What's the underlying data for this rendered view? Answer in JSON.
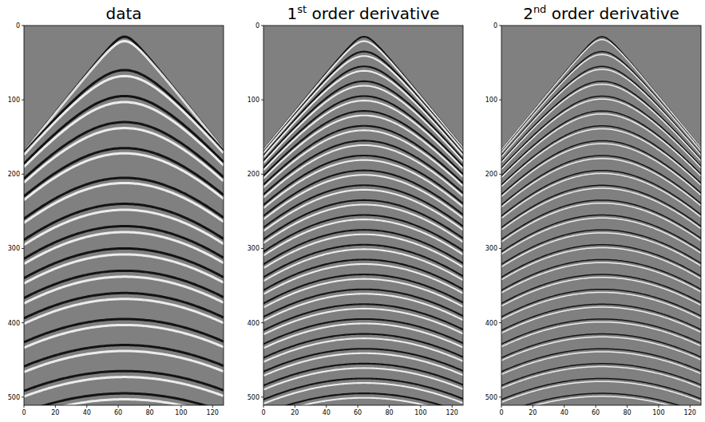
{
  "chart_data": [
    {
      "type": "image",
      "title": "data",
      "xlim": [
        0,
        127
      ],
      "ylim": [
        0,
        511
      ],
      "xticks": [
        0,
        20,
        40,
        60,
        80,
        100,
        120
      ],
      "yticks": [
        0,
        100,
        200,
        300,
        400,
        500
      ],
      "apex_x": 64,
      "t0": [
        15,
        21,
        60,
        68,
        95,
        103,
        130,
        138,
        165,
        172,
        205,
        212,
        240,
        248,
        270,
        278,
        300,
        308,
        330,
        338,
        360,
        368,
        395,
        403,
        430,
        438,
        465,
        473,
        495,
        503
      ],
      "slowness": [
        2.64,
        2.64,
        2.5,
        2.5,
        2.5,
        2.5,
        2.5,
        2.5,
        2.5,
        2.5,
        2.5,
        2.5,
        2.5,
        2.5,
        2.5,
        2.5,
        2.5,
        2.5,
        2.5,
        2.5,
        2.5,
        2.5,
        2.5,
        2.5,
        2.5,
        2.5,
        2.5,
        2.5,
        2.5,
        2.5
      ],
      "amplitude": [
        -1,
        1,
        -1,
        1,
        -1,
        1,
        -1,
        1,
        -1,
        1,
        -1,
        1,
        -1,
        1,
        -1,
        1,
        -1,
        1,
        -1,
        1,
        -1,
        1,
        -1,
        1,
        -1,
        1,
        -1,
        1,
        -1,
        1
      ]
    },
    {
      "type": "image",
      "title": "1st order derivative",
      "xlim": [
        0,
        127
      ],
      "ylim": [
        0,
        511
      ],
      "xticks": [
        0,
        20,
        40,
        60,
        80,
        100,
        120
      ],
      "yticks": [
        0,
        100,
        200,
        300,
        400,
        500
      ],
      "apex_x": 64,
      "t0": [
        15,
        21,
        35,
        41,
        55,
        61,
        75,
        81,
        95,
        101,
        115,
        121,
        135,
        141,
        155,
        161,
        175,
        181,
        195,
        201,
        215,
        221,
        235,
        241,
        255,
        261,
        275,
        281,
        295,
        301,
        315,
        321,
        335,
        341,
        355,
        361,
        375,
        381,
        395,
        401,
        415,
        421,
        435,
        441,
        455,
        461,
        475,
        481,
        495,
        501
      ],
      "slowness": [
        2.6,
        2.6,
        2.6,
        2.6,
        2.6,
        2.6,
        2.6,
        2.6,
        2.6,
        2.6,
        2.6,
        2.6,
        2.6,
        2.6,
        2.6,
        2.6,
        2.6,
        2.6,
        2.6,
        2.6,
        2.6,
        2.6,
        2.6,
        2.6,
        2.6,
        2.6,
        2.6,
        2.6,
        2.6,
        2.6,
        2.6,
        2.6,
        2.6,
        2.6,
        2.6,
        2.6,
        2.6,
        2.6,
        2.6,
        2.6,
        2.6,
        2.6,
        2.6,
        2.6,
        2.6,
        2.6,
        2.6,
        2.6,
        2.6,
        2.6
      ],
      "amplitude": [
        -0.7,
        0.7,
        -0.7,
        0.7,
        -0.7,
        0.7,
        -0.7,
        0.7,
        -0.7,
        0.7,
        -0.7,
        0.7,
        -0.7,
        0.7,
        -0.7,
        0.7,
        -0.7,
        0.7,
        -0.7,
        0.7,
        -0.7,
        0.7,
        -0.7,
        0.7,
        -0.7,
        0.7,
        -0.7,
        0.7,
        -0.7,
        0.7,
        -0.7,
        0.7,
        -0.7,
        0.7,
        -0.7,
        0.7,
        -0.7,
        0.7,
        -0.7,
        0.7,
        -0.7,
        0.7,
        -0.7,
        0.7,
        -0.7,
        0.7,
        -0.7,
        0.7,
        -0.7,
        0.7
      ]
    },
    {
      "type": "image",
      "title": "2nd order derivative",
      "xlim": [
        0,
        127
      ],
      "ylim": [
        0,
        511
      ],
      "xticks": [
        0,
        20,
        40,
        60,
        80,
        100,
        120
      ],
      "yticks": [
        0,
        100,
        200,
        300,
        400,
        500
      ],
      "apex_x": 64,
      "t0": [
        15,
        19,
        35,
        39,
        55,
        59,
        75,
        79,
        95,
        99,
        115,
        119,
        135,
        139,
        155,
        159,
        175,
        179,
        195,
        199,
        215,
        219,
        235,
        239,
        255,
        259,
        275,
        279,
        295,
        299,
        315,
        319,
        335,
        339,
        355,
        359,
        375,
        379,
        395,
        399,
        415,
        419,
        435,
        439,
        455,
        459,
        475,
        479,
        495,
        499
      ],
      "slowness": [
        2.6,
        2.6,
        2.6,
        2.6,
        2.6,
        2.6,
        2.6,
        2.6,
        2.6,
        2.6,
        2.6,
        2.6,
        2.6,
        2.6,
        2.6,
        2.6,
        2.6,
        2.6,
        2.6,
        2.6,
        2.6,
        2.6,
        2.6,
        2.6,
        2.6,
        2.6,
        2.6,
        2.6,
        2.6,
        2.6,
        2.6,
        2.6,
        2.6,
        2.6,
        2.6,
        2.6,
        2.6,
        2.6,
        2.6,
        2.6,
        2.6,
        2.6,
        2.6,
        2.6,
        2.6,
        2.6,
        2.6,
        2.6,
        2.6,
        2.6
      ],
      "amplitude": [
        -0.5,
        0.5,
        -0.5,
        0.5,
        -0.5,
        0.5,
        -0.5,
        0.5,
        -0.5,
        0.5,
        -0.5,
        0.5,
        -0.5,
        0.5,
        -0.5,
        0.5,
        -0.5,
        0.5,
        -0.5,
        0.5,
        -0.5,
        0.5,
        -0.5,
        0.5,
        -0.5,
        0.5,
        -0.5,
        0.5,
        -0.5,
        0.5,
        -0.5,
        0.5,
        -0.5,
        0.5,
        -0.5,
        0.5,
        -0.5,
        0.5,
        -0.5,
        0.5,
        -0.5,
        0.5,
        -0.5,
        0.5,
        -0.5,
        0.5,
        -0.5,
        0.5,
        -0.5,
        0.5
      ]
    }
  ]
}
